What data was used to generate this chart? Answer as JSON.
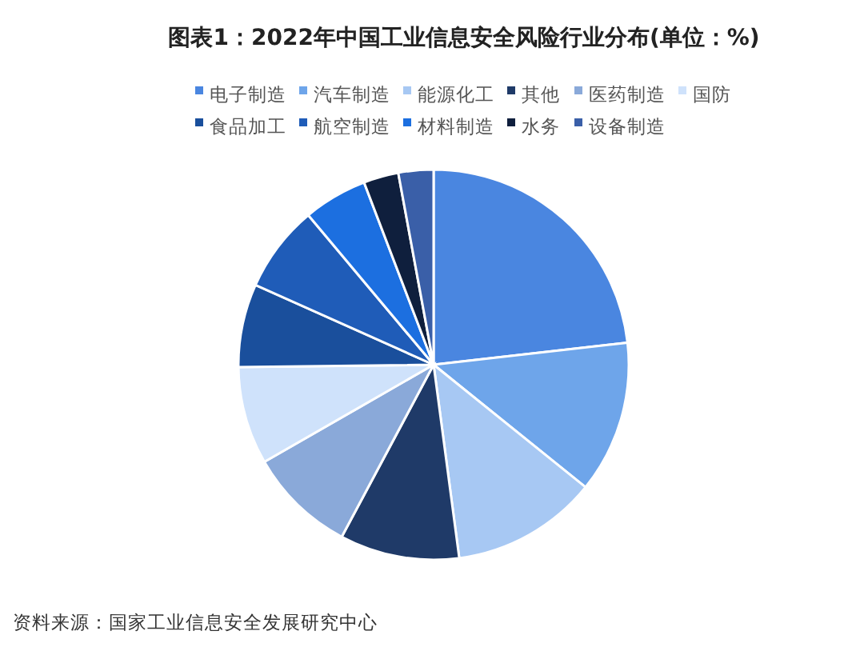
{
  "chart_data": {
    "type": "pie",
    "title": "图表1：2022年中国工业信息安全风险行业分布(单位：%)",
    "categories": [
      "电子制造",
      "汽车制造",
      "能源化工",
      "其他",
      "医药制造",
      "国防",
      "食品加工",
      "航空制造",
      "材料制造",
      "水务",
      "设备制造"
    ],
    "values": [
      23.2,
      12.6,
      12.1,
      9.9,
      8.9,
      8.1,
      6.9,
      7.2,
      5.3,
      2.9,
      2.9
    ],
    "colors": [
      "#4a86e0",
      "#6ea5ea",
      "#a7c8f3",
      "#1f3a68",
      "#8aa9d9",
      "#cfe2fb",
      "#1a4f9c",
      "#1f5cb8",
      "#1c6fe0",
      "#0f1f3d",
      "#3a5fa8"
    ],
    "legend": "top",
    "annotations": [
      "资料来源：国家工业信息安全发展研究中心"
    ]
  }
}
